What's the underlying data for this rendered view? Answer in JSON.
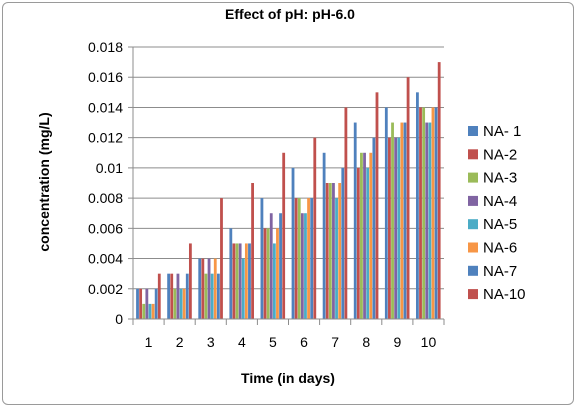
{
  "chart_data": {
    "type": "bar",
    "title": "Effect of pH: pH-6.0",
    "xlabel": "Time (in days)",
    "ylabel": "concentration (mg/L)",
    "categories": [
      "1",
      "2",
      "3",
      "4",
      "5",
      "6",
      "7",
      "8",
      "9",
      "10"
    ],
    "ylim": [
      0,
      0.018
    ],
    "yticks": [
      "0",
      "0.002",
      "0.004",
      "0.006",
      "0.008",
      "0.01",
      "0.012",
      "0.014",
      "0.016",
      "0.018"
    ],
    "grid": true,
    "legend_position": "right",
    "series": [
      {
        "name": "NA- 1",
        "color": "#4F81BD",
        "values": [
          0.002,
          0.003,
          0.004,
          0.006,
          0.008,
          0.01,
          0.011,
          0.013,
          0.014,
          0.015
        ]
      },
      {
        "name": "NA-2",
        "color": "#C0504D",
        "values": [
          0.002,
          0.003,
          0.004,
          0.005,
          0.006,
          0.008,
          0.009,
          0.01,
          0.012,
          0.014
        ]
      },
      {
        "name": "NA-3",
        "color": "#9BBB59",
        "values": [
          0.001,
          0.002,
          0.003,
          0.005,
          0.006,
          0.008,
          0.009,
          0.011,
          0.013,
          0.014
        ]
      },
      {
        "name": "NA-4",
        "color": "#8064A2",
        "values": [
          0.002,
          0.003,
          0.004,
          0.005,
          0.007,
          0.007,
          0.009,
          0.011,
          0.012,
          0.013
        ]
      },
      {
        "name": "NA-5",
        "color": "#4BACC6",
        "values": [
          0.001,
          0.002,
          0.003,
          0.004,
          0.005,
          0.007,
          0.008,
          0.01,
          0.012,
          0.013
        ]
      },
      {
        "name": "NA-6",
        "color": "#F79646",
        "values": [
          0.001,
          0.002,
          0.004,
          0.005,
          0.006,
          0.008,
          0.009,
          0.011,
          0.013,
          0.014
        ]
      },
      {
        "name": "NA-7",
        "color": "#4F81BD",
        "values": [
          0.002,
          0.003,
          0.003,
          0.005,
          0.007,
          0.008,
          0.01,
          0.012,
          0.013,
          0.014
        ]
      },
      {
        "name": "NA-10",
        "color": "#C0504D",
        "values": [
          0.003,
          0.005,
          0.008,
          0.009,
          0.011,
          0.012,
          0.014,
          0.015,
          0.016,
          0.017
        ]
      }
    ]
  }
}
